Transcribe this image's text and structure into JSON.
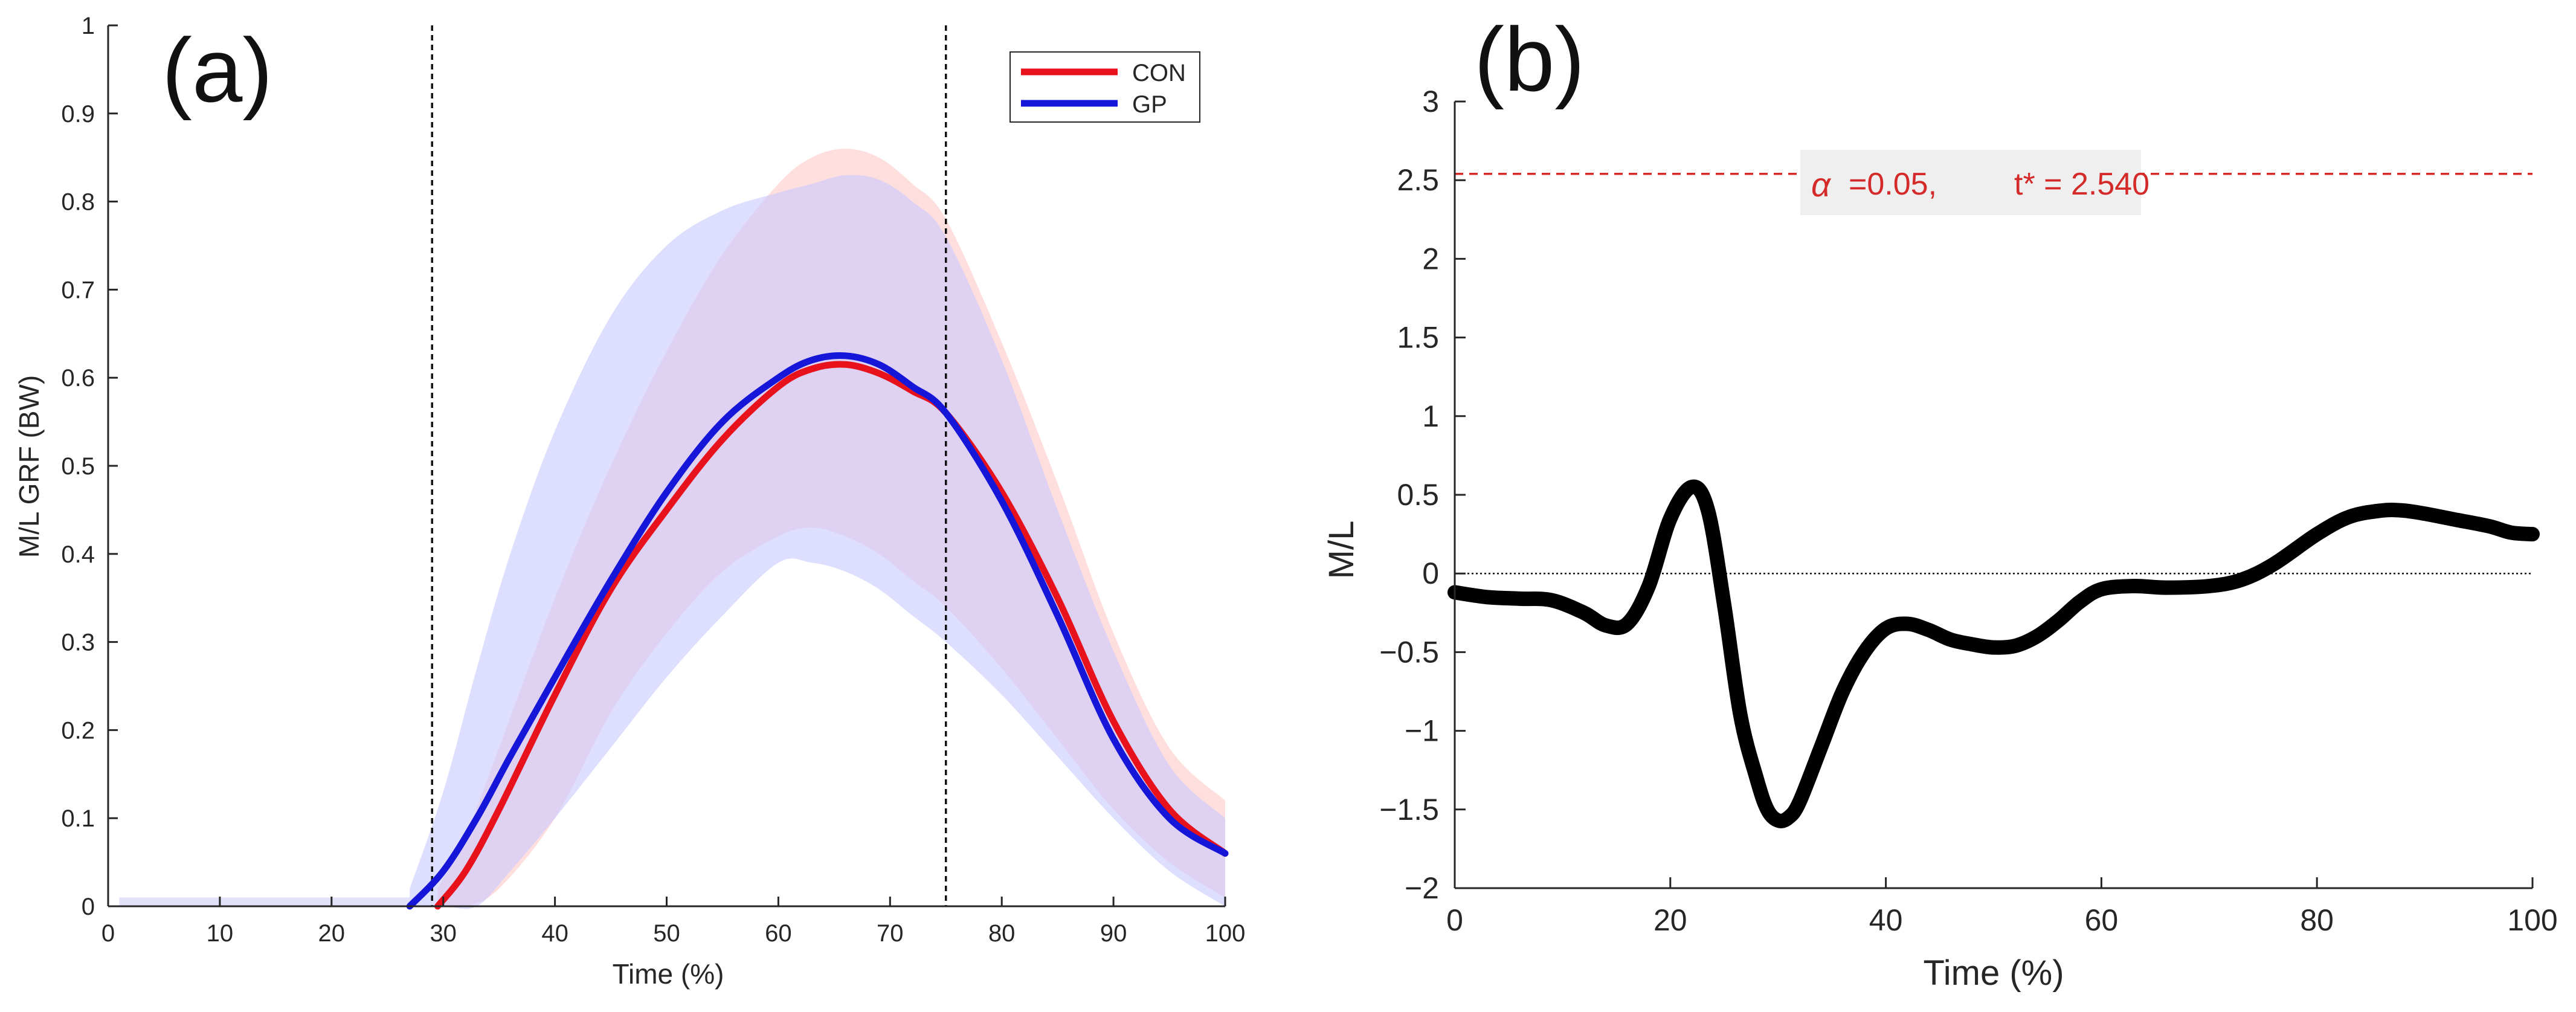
{
  "chart_data": [
    {
      "type": "line",
      "panel_label": "(a)",
      "xlabel": "Time (%)",
      "ylabel": "M/L GRF (BW)",
      "xlim": [
        0,
        100
      ],
      "ylim": [
        0,
        1
      ],
      "xticks": [
        "0",
        "10",
        "20",
        "30",
        "40",
        "50",
        "60",
        "70",
        "80",
        "90",
        "100"
      ],
      "yticks": [
        "0",
        "0.1",
        "0.2",
        "0.3",
        "0.4",
        "0.5",
        "0.6",
        "0.7",
        "0.8",
        "0.9",
        "1"
      ],
      "grid": false,
      "legend": {
        "placement": "top-right",
        "entries": [
          "CON",
          "GP"
        ]
      },
      "vlines": [
        29,
        75
      ],
      "series": [
        {
          "name": "CON",
          "color": "#e8121c",
          "band_color": "#ffc8c8",
          "x": [
            29.5,
            32,
            35,
            40,
            45,
            50,
            55,
            60,
            63,
            66,
            69,
            72,
            75,
            80,
            85,
            90,
            95,
            100
          ],
          "values": [
            0.0,
            0.04,
            0.11,
            0.24,
            0.36,
            0.45,
            0.53,
            0.59,
            0.61,
            0.615,
            0.605,
            0.585,
            0.56,
            0.47,
            0.35,
            0.21,
            0.11,
            0.06
          ],
          "upper": [
            0.02,
            0.08,
            0.18,
            0.35,
            0.5,
            0.63,
            0.74,
            0.82,
            0.85,
            0.86,
            0.85,
            0.82,
            0.78,
            0.64,
            0.48,
            0.31,
            0.18,
            0.12
          ],
          "lower": [
            0.0,
            0.0,
            0.02,
            0.1,
            0.22,
            0.31,
            0.38,
            0.42,
            0.43,
            0.42,
            0.4,
            0.37,
            0.34,
            0.27,
            0.19,
            0.11,
            0.05,
            0.01
          ]
        },
        {
          "name": "GP",
          "color": "#1616d9",
          "band_color": "#c8c8ff",
          "x": [
            27,
            30,
            33,
            36,
            40,
            45,
            50,
            55,
            60,
            63,
            66,
            69,
            72,
            75,
            80,
            85,
            90,
            95,
            100
          ],
          "values": [
            0.0,
            0.04,
            0.1,
            0.17,
            0.26,
            0.37,
            0.47,
            0.55,
            0.6,
            0.62,
            0.625,
            0.615,
            0.59,
            0.56,
            0.46,
            0.33,
            0.19,
            0.1,
            0.06
          ],
          "upper": [
            0.02,
            0.13,
            0.27,
            0.4,
            0.54,
            0.67,
            0.75,
            0.79,
            0.81,
            0.82,
            0.83,
            0.825,
            0.8,
            0.76,
            0.62,
            0.45,
            0.29,
            0.16,
            0.1
          ],
          "lower": [
            0.0,
            0.0,
            0.0,
            0.04,
            0.1,
            0.18,
            0.26,
            0.33,
            0.39,
            0.39,
            0.38,
            0.36,
            0.33,
            0.3,
            0.24,
            0.17,
            0.1,
            0.04,
            0.0
          ]
        }
      ],
      "baseline_band": {
        "x_from": 1,
        "x_to": 27,
        "upper": 0.01
      }
    },
    {
      "type": "line",
      "panel_label": "(b)",
      "xlabel": "Time (%)",
      "ylabel": "M/L",
      "xlim": [
        0,
        100
      ],
      "ylim": [
        -2,
        3
      ],
      "xticks": [
        "0",
        "20",
        "40",
        "60",
        "80",
        "100"
      ],
      "yticks": [
        "−2",
        "−1.5",
        "−1",
        "−0.5",
        "0",
        "0.5",
        "1",
        "1.5",
        "2",
        "2.5",
        "3"
      ],
      "grid": false,
      "threshold": {
        "value": 2.54,
        "color": "#d42a2a",
        "alpha_symbol": "α",
        "alpha_text": " =0.05,",
        "t_text": "t* = 2.540"
      },
      "zero_line": 0,
      "series": [
        {
          "color": "#000000",
          "x": [
            0,
            3,
            6,
            9,
            12,
            14,
            16,
            18,
            20,
            22,
            23.5,
            25,
            26.5,
            28,
            29,
            30,
            31,
            32,
            34,
            36,
            38,
            40,
            42,
            44,
            46,
            48,
            50,
            52,
            54,
            56,
            58,
            60,
            63,
            66,
            70,
            73,
            76,
            80,
            83,
            86,
            88,
            90,
            93,
            96,
            98,
            100
          ],
          "values": [
            -0.12,
            -0.15,
            -0.16,
            -0.17,
            -0.25,
            -0.33,
            -0.32,
            -0.08,
            0.35,
            0.55,
            0.4,
            -0.2,
            -0.9,
            -1.3,
            -1.5,
            -1.57,
            -1.55,
            -1.45,
            -1.1,
            -0.75,
            -0.5,
            -0.35,
            -0.32,
            -0.36,
            -0.42,
            -0.45,
            -0.47,
            -0.46,
            -0.4,
            -0.3,
            -0.18,
            -0.1,
            -0.08,
            -0.09,
            -0.08,
            -0.04,
            0.06,
            0.25,
            0.36,
            0.4,
            0.4,
            0.38,
            0.34,
            0.3,
            0.26,
            0.25
          ]
        }
      ]
    }
  ]
}
